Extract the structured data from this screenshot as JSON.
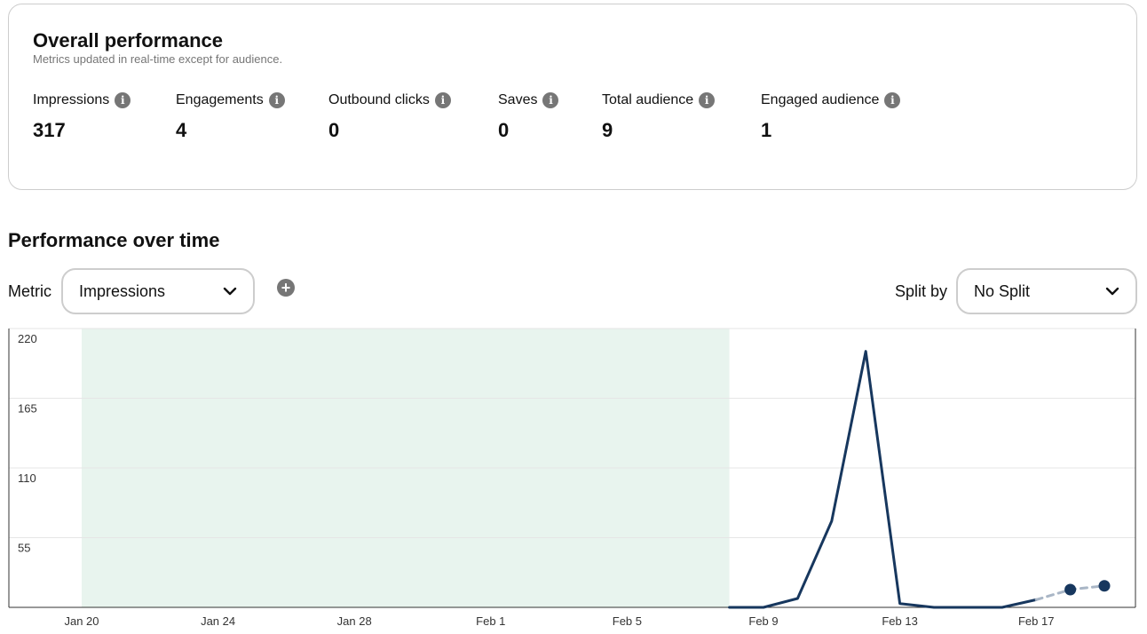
{
  "overall": {
    "title": "Overall performance",
    "subtitle": "Metrics updated in real-time except for audience.",
    "info_icon": "info-icon",
    "metrics": [
      {
        "label": "Impressions",
        "value": "317"
      },
      {
        "label": "Engagements",
        "value": "4"
      },
      {
        "label": "Outbound clicks",
        "value": "0"
      },
      {
        "label": "Saves",
        "value": "0"
      },
      {
        "label": "Total audience",
        "value": "9"
      },
      {
        "label": "Engaged audience",
        "value": "1"
      }
    ]
  },
  "over_time": {
    "title": "Performance over time",
    "metric_label": "Metric",
    "metric_select": "Impressions",
    "add_icon": "plus-circle-icon",
    "split_label": "Split by",
    "split_select": "No Split"
  },
  "colors": {
    "line": "#17375e",
    "projection": "#a9b6c6",
    "shaded_region": "#e8f4ee",
    "grid": "#e6e6e6",
    "axis": "#333333",
    "icon_gray": "#767676"
  },
  "chart_data": {
    "type": "line",
    "title": "",
    "xlabel": "",
    "ylabel": "",
    "ylim": [
      0,
      220
    ],
    "yticks": [
      55,
      110,
      165,
      220
    ],
    "xticks": [
      "Jan 20",
      "Jan 24",
      "Jan 28",
      "Feb 1",
      "Feb 5",
      "Feb 9",
      "Feb 13",
      "Feb 17"
    ],
    "x_start": "Jan 20",
    "shaded_range": [
      "Jan 20",
      "Feb 8"
    ],
    "grid": true,
    "series": [
      {
        "style": "solid",
        "x": [
          "Feb 8",
          "Feb 9",
          "Feb 10",
          "Feb 11",
          "Feb 12",
          "Feb 13",
          "Feb 14",
          "Feb 15",
          "Feb 16",
          "Feb 17"
        ],
        "values": [
          0,
          0,
          7,
          68,
          202,
          3,
          0,
          0,
          0,
          6
        ]
      },
      {
        "style": "dashed",
        "x": [
          "Feb 17",
          "Feb 18",
          "Feb 19"
        ],
        "values": [
          6,
          14,
          17
        ],
        "markers": [
          "Feb 18",
          "Feb 19"
        ]
      }
    ]
  }
}
